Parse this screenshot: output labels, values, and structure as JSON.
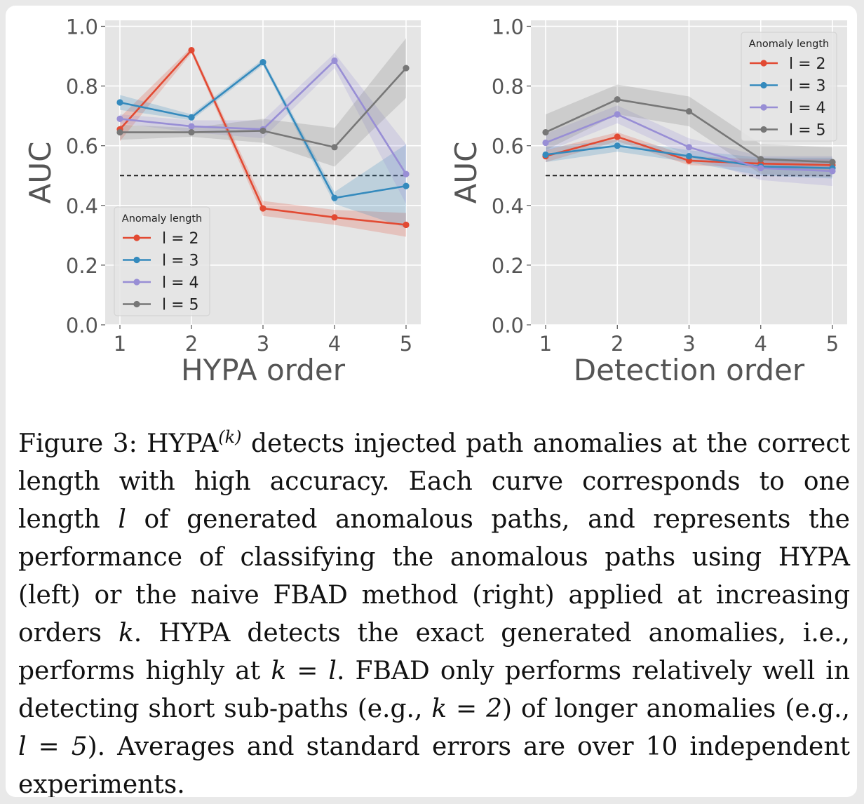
{
  "colors": {
    "plot_bg": "#e5e5e5",
    "grid": "#ffffff",
    "axis_text": "#555555",
    "baseline": "#222222",
    "series": [
      "#e24a33",
      "#348abd",
      "#988ed5",
      "#777777"
    ]
  },
  "chart_data": [
    {
      "type": "line",
      "xlabel": "HYPA order",
      "ylabel": "AUC",
      "x": [
        1,
        2,
        3,
        4,
        5
      ],
      "xticks": [
        "1",
        "2",
        "3",
        "4",
        "5"
      ],
      "yticks": [
        "0.0",
        "0.2",
        "0.4",
        "0.6",
        "0.8",
        "1.0"
      ],
      "ylim": [
        0,
        1.02
      ],
      "grid": true,
      "baseline": 0.5,
      "legend": {
        "title": "Anomaly length",
        "position": "lower-left",
        "labels": [
          "l = 2",
          "l = 3",
          "l = 4",
          "l = 5"
        ]
      },
      "series": [
        {
          "name": "l = 2",
          "values": [
            0.655,
            0.92,
            0.39,
            0.36,
            0.335
          ],
          "err": [
            0.04,
            0.01,
            0.025,
            0.025,
            0.04
          ]
        },
        {
          "name": "l = 3",
          "values": [
            0.745,
            0.695,
            0.88,
            0.425,
            0.465
          ],
          "err": [
            0.025,
            0.01,
            0.01,
            0.02,
            0.14
          ]
        },
        {
          "name": "l = 4",
          "values": [
            0.69,
            0.665,
            0.655,
            0.885,
            0.505
          ],
          "err": [
            0.015,
            0.02,
            0.03,
            0.025,
            0.1
          ]
        },
        {
          "name": "l = 5",
          "values": [
            0.645,
            0.645,
            0.65,
            0.595,
            0.86
          ],
          "err": [
            0.025,
            0.015,
            0.04,
            0.065,
            0.1
          ]
        }
      ]
    },
    {
      "type": "line",
      "xlabel": "Detection order",
      "ylabel": "AUC",
      "x": [
        1,
        2,
        3,
        4,
        5
      ],
      "xticks": [
        "1",
        "2",
        "3",
        "4",
        "5"
      ],
      "yticks": [
        "0.0",
        "0.2",
        "0.4",
        "0.6",
        "0.8",
        "1.0"
      ],
      "ylim": [
        0,
        1.02
      ],
      "grid": true,
      "baseline": 0.5,
      "legend": {
        "title": "Anomaly length",
        "position": "upper-right",
        "labels": [
          "l = 2",
          "l = 3",
          "l = 4",
          "l = 5"
        ]
      },
      "series": [
        {
          "name": "l = 2",
          "values": [
            0.565,
            0.63,
            0.55,
            0.54,
            0.535
          ],
          "err": [
            0.02,
            0.015,
            0.015,
            0.015,
            0.02
          ]
        },
        {
          "name": "l = 3",
          "values": [
            0.57,
            0.6,
            0.565,
            0.53,
            0.525
          ],
          "err": [
            0.025,
            0.02,
            0.02,
            0.03,
            0.035
          ]
        },
        {
          "name": "l = 4",
          "values": [
            0.61,
            0.705,
            0.595,
            0.525,
            0.515
          ],
          "err": [
            0.03,
            0.03,
            0.03,
            0.04,
            0.05
          ]
        },
        {
          "name": "l = 5",
          "values": [
            0.645,
            0.755,
            0.715,
            0.555,
            0.545
          ],
          "err": [
            0.06,
            0.05,
            0.05,
            0.05,
            0.05
          ]
        }
      ]
    }
  ],
  "caption": {
    "label": "Figure 3:",
    "hypa_base": "HYPA",
    "hypa_sup": "(k)",
    "part1": "detects injected path anomalies at the correct length with high accuracy. Each curve corresponds to one length",
    "var_l": "l",
    "part2": "of generated anomalous paths, and represents the performance of classifying the anomalous paths using HYPA (left) or the naive FBAD method (right) applied at increasing orders",
    "var_k": "k",
    "part3": ". HYPA detects the exact generated anomalies, i.e., performs highly at",
    "eq1": "k = l",
    "part4": ". FBAD only performs relatively well in detecting short sub-paths (e.g.,",
    "eq2": "k = 2",
    "part5": ") of longer anomalies (e.g.,",
    "eq3": "l = 5",
    "part6": "). Averages and standard errors are over 10 independent experiments."
  }
}
